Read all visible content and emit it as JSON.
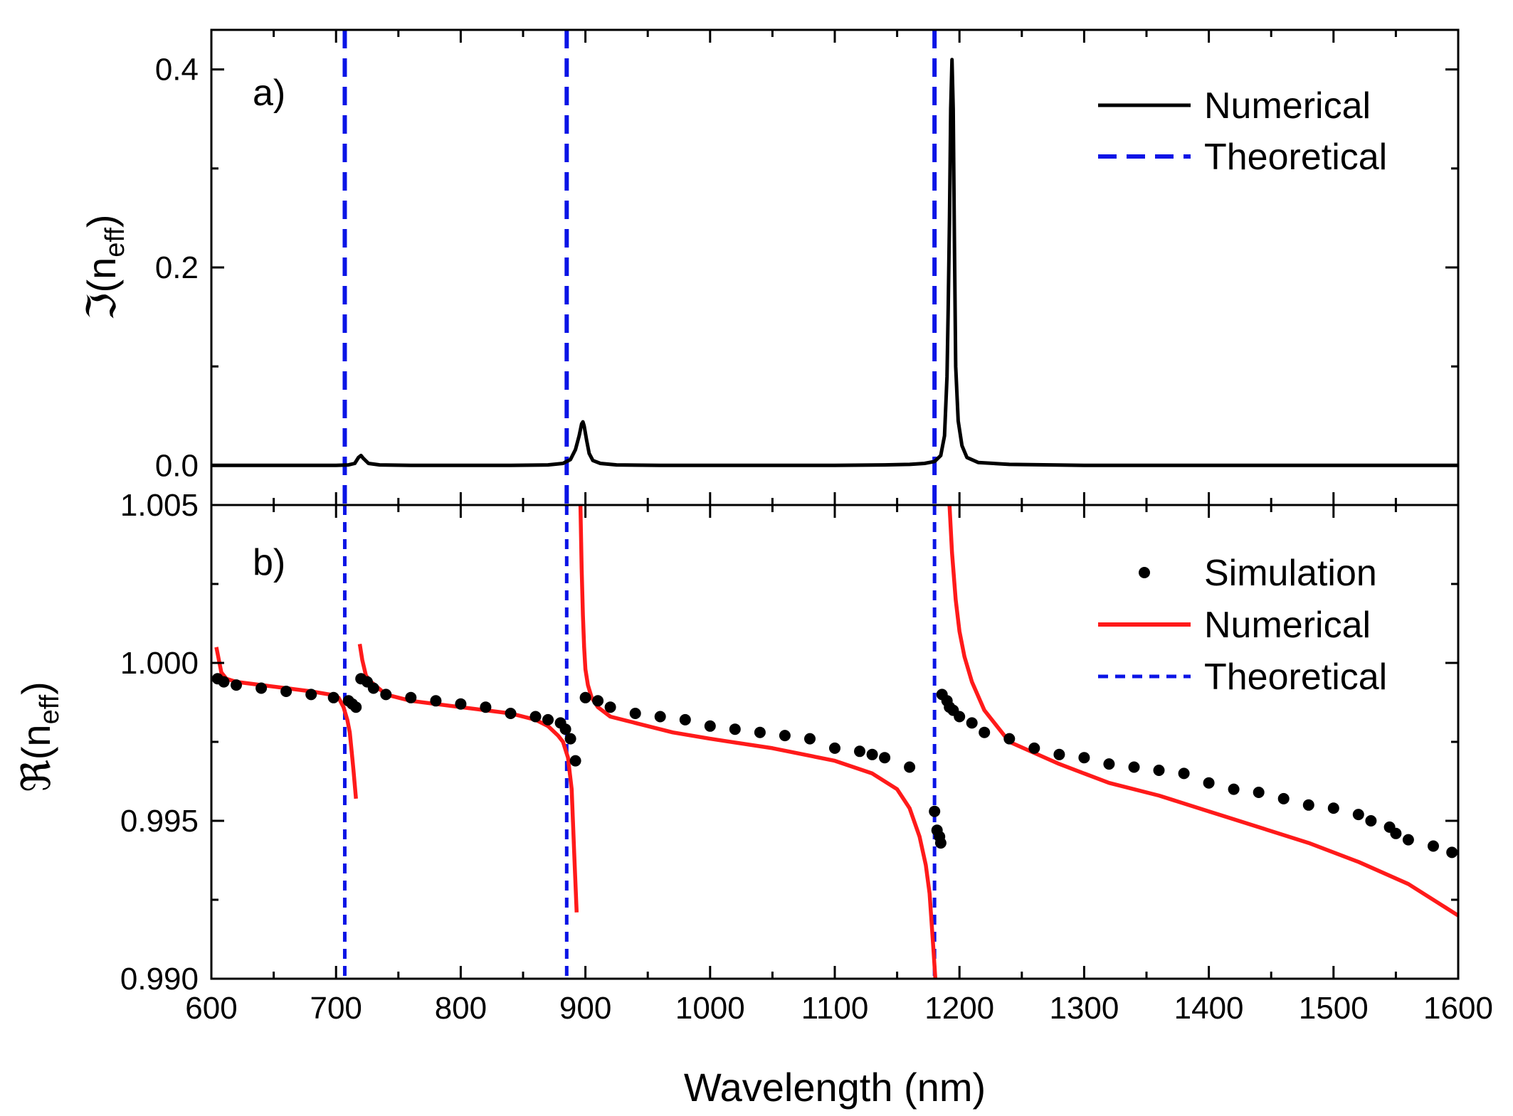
{
  "colors": {
    "numerical_a": "#000000",
    "numerical_b": "#ff1a1a",
    "theoretical": "#0a14e6",
    "simulation": "#000000",
    "axes": "#000000"
  },
  "chart_data": [
    {
      "type": "line",
      "panel_label": "a)",
      "ylabel_symbol": "ℑ(n",
      "ylabel_sub": "eff",
      "ylabel_close": ")",
      "xlim": [
        600,
        1600
      ],
      "ylim": [
        -0.04,
        0.44
      ],
      "yticks": [
        0.0,
        0.2,
        0.4
      ],
      "ytick_labels": [
        "0.0",
        "0.2",
        "0.4"
      ],
      "grid": false,
      "legend_position": "top-right",
      "legend": [
        "Numerical",
        "Theoretical"
      ],
      "series": [
        {
          "name": "Numerical",
          "style": "solid",
          "x": [
            600,
            700,
            710,
            715,
            718,
            720,
            722,
            726,
            735,
            760,
            800,
            840,
            870,
            882,
            888,
            892,
            895,
            897,
            898,
            899,
            901,
            903,
            906,
            912,
            925,
            960,
            1000,
            1050,
            1100,
            1140,
            1160,
            1172,
            1180,
            1185,
            1188,
            1190,
            1191,
            1192,
            1193,
            1194,
            1195,
            1196,
            1197,
            1199,
            1202,
            1206,
            1215,
            1240,
            1300,
            1400,
            1500,
            1600
          ],
          "y": [
            0.0,
            0.0,
            0.0005,
            0.002,
            0.008,
            0.01,
            0.007,
            0.002,
            0.0005,
            0.0,
            0.0,
            0.0,
            0.0005,
            0.002,
            0.006,
            0.016,
            0.03,
            0.042,
            0.044,
            0.04,
            0.025,
            0.012,
            0.005,
            0.002,
            0.0005,
            0.0,
            0.0,
            0.0,
            0.0,
            0.0005,
            0.001,
            0.002,
            0.004,
            0.01,
            0.03,
            0.09,
            0.16,
            0.25,
            0.36,
            0.41,
            0.36,
            0.22,
            0.1,
            0.045,
            0.02,
            0.008,
            0.003,
            0.001,
            0.0,
            0.0,
            0.0,
            0.0
          ]
        },
        {
          "name": "Theoretical",
          "style": "dashed",
          "vlines": [
            707,
            885,
            1180
          ]
        }
      ]
    },
    {
      "type": "line",
      "panel_label": "b)",
      "ylabel_symbol": "ℜ(n",
      "ylabel_sub": "eff",
      "ylabel_close": ")",
      "xlabel": "Wavelength (nm)",
      "xlim": [
        600,
        1600
      ],
      "xticks": [
        600,
        700,
        800,
        900,
        1000,
        1100,
        1200,
        1300,
        1400,
        1500,
        1600
      ],
      "xtick_labels": [
        "600",
        "700",
        "800",
        "900",
        "1000",
        "1100",
        "1200",
        "1300",
        "1400",
        "1500",
        "1600"
      ],
      "ylim": [
        0.99,
        1.005
      ],
      "yticks": [
        0.99,
        0.995,
        1.0,
        1.005
      ],
      "ytick_labels": [
        "0.990",
        "0.995",
        "1.000",
        "1.005"
      ],
      "grid": false,
      "legend_position": "top-right",
      "legend": [
        "Simulation",
        "Numerical",
        "Theoretical"
      ],
      "series": [
        {
          "name": "Simulation",
          "style": "markers",
          "x": [
            605,
            610,
            620,
            640,
            660,
            680,
            698,
            710,
            713,
            716,
            720,
            725,
            730,
            740,
            760,
            780,
            800,
            820,
            840,
            860,
            870,
            880,
            884,
            888,
            892,
            900,
            910,
            920,
            940,
            960,
            980,
            1000,
            1020,
            1040,
            1060,
            1080,
            1100,
            1120,
            1130,
            1140,
            1160,
            1180,
            1182,
            1184,
            1185,
            1186,
            1190,
            1192,
            1195,
            1200,
            1210,
            1220,
            1240,
            1260,
            1280,
            1300,
            1320,
            1340,
            1360,
            1380,
            1400,
            1420,
            1440,
            1460,
            1480,
            1500,
            1520,
            1530,
            1545,
            1550,
            1560,
            1580,
            1595
          ],
          "y": [
            0.9995,
            0.9994,
            0.9993,
            0.9992,
            0.9991,
            0.999,
            0.9989,
            0.9988,
            0.9987,
            0.9986,
            0.9995,
            0.9994,
            0.9992,
            0.999,
            0.9989,
            0.9988,
            0.9987,
            0.9986,
            0.9984,
            0.9983,
            0.9982,
            0.9981,
            0.9979,
            0.9976,
            0.9969,
            0.9989,
            0.9988,
            0.9986,
            0.9984,
            0.9983,
            0.9982,
            0.998,
            0.9979,
            0.9978,
            0.9977,
            0.9976,
            0.9973,
            0.9972,
            0.9971,
            0.997,
            0.9967,
            0.9953,
            0.9947,
            0.9945,
            0.9943,
            0.999,
            0.9988,
            0.9986,
            0.9985,
            0.9983,
            0.9981,
            0.9978,
            0.9976,
            0.9973,
            0.9971,
            0.997,
            0.9968,
            0.9967,
            0.9966,
            0.9965,
            0.9962,
            0.996,
            0.9959,
            0.9957,
            0.9955,
            0.9954,
            0.9952,
            0.995,
            0.9948,
            0.9946,
            0.9944,
            0.9942,
            0.994
          ]
        },
        {
          "name": "Numerical",
          "style": "solid",
          "segments": [
            {
              "x": [
                604,
                606,
                608,
                612,
                620,
                640,
                660,
                680,
                695,
                702,
                706,
                709,
                711,
                713,
                714,
                716
              ],
              "y": [
                1.0005,
                1.0001,
                0.9997,
                0.9995,
                0.9994,
                0.9993,
                0.9992,
                0.9991,
                0.999,
                0.9989,
                0.9986,
                0.9982,
                0.9978,
                0.997,
                0.9966,
                0.9957
              ]
            },
            {
              "x": [
                719,
                721,
                724,
                728,
                740,
                760,
                800,
                840,
                860,
                870,
                878,
                882,
                886,
                889,
                891,
                893
              ],
              "y": [
                1.0006,
                1.0001,
                0.9996,
                0.9994,
                0.999,
                0.9988,
                0.9986,
                0.9984,
                0.9982,
                0.998,
                0.9977,
                0.9975,
                0.997,
                0.996,
                0.994,
                0.9921
              ]
            },
            {
              "x": [
                896,
                897,
                898,
                899,
                900,
                902,
                905,
                910,
                920,
                940,
                970,
                1000,
                1050,
                1100,
                1130,
                1150,
                1160,
                1168,
                1173,
                1176,
                1179,
                1181,
                1183
              ],
              "y": [
                1.005,
                1.003,
                1.0015,
                1.0005,
                0.9998,
                0.9993,
                0.9989,
                0.9986,
                0.9983,
                0.9981,
                0.9978,
                0.9976,
                0.9973,
                0.9969,
                0.9965,
                0.996,
                0.9954,
                0.9945,
                0.9936,
                0.9927,
                0.991,
                0.9898,
                0.9888
              ]
            },
            {
              "x": [
                1192,
                1194,
                1197,
                1200,
                1204,
                1210,
                1220,
                1240,
                1280,
                1320,
                1360,
                1400,
                1440,
                1480,
                1520,
                1560,
                1600
              ],
              "y": [
                1.005,
                1.0035,
                1.002,
                1.001,
                1.0002,
                0.9994,
                0.9985,
                0.9975,
                0.9968,
                0.9962,
                0.9958,
                0.9953,
                0.9948,
                0.9943,
                0.9937,
                0.993,
                0.992
              ]
            }
          ]
        },
        {
          "name": "Theoretical",
          "style": "dashed",
          "vlines": [
            707,
            885,
            1180
          ]
        }
      ]
    }
  ]
}
